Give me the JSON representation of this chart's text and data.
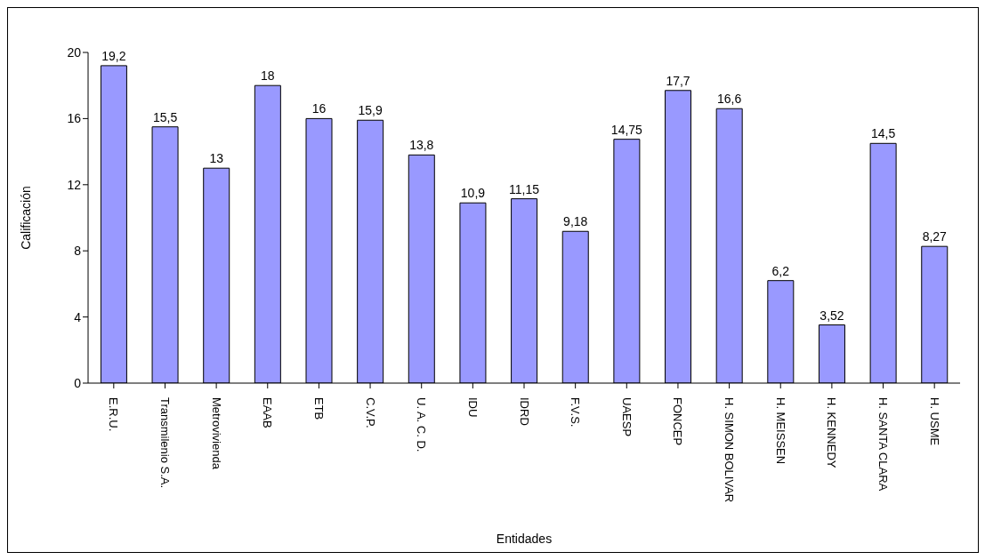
{
  "chart_data": {
    "type": "bar",
    "xlabel": "Entidades",
    "ylabel": "Calificación",
    "categories": [
      "E.R.U.",
      "Transmilenio S.A.",
      "Metrovivienda",
      "EAAB",
      "ETB",
      "C.V.P.",
      "U. A. C. D.",
      "IDU",
      "IDRD",
      "F.V.S.",
      "UAESP",
      "FONCEP",
      "H. SIMON BOLIVAR",
      "H. MEISSEN",
      "H. KENNEDY",
      "H. SANTA CLARA",
      "H. USME"
    ],
    "values": [
      19.2,
      15.5,
      13,
      18,
      16,
      15.9,
      13.8,
      10.9,
      11.15,
      9.18,
      14.75,
      17.7,
      16.6,
      6.2,
      3.52,
      14.5,
      8.27
    ],
    "value_labels": [
      "19,2",
      "15,5",
      "13",
      "18",
      "16",
      "15,9",
      "13,8",
      "10,9",
      "11,15",
      "9,18",
      "14,75",
      "17,7",
      "16,6",
      "6,2",
      "3,52",
      "14,5",
      "8,27"
    ],
    "color": "#9999ff",
    "ylim": [
      0,
      20
    ],
    "yticks": [
      0,
      4,
      8,
      12,
      16,
      20
    ],
    "grid": false
  }
}
